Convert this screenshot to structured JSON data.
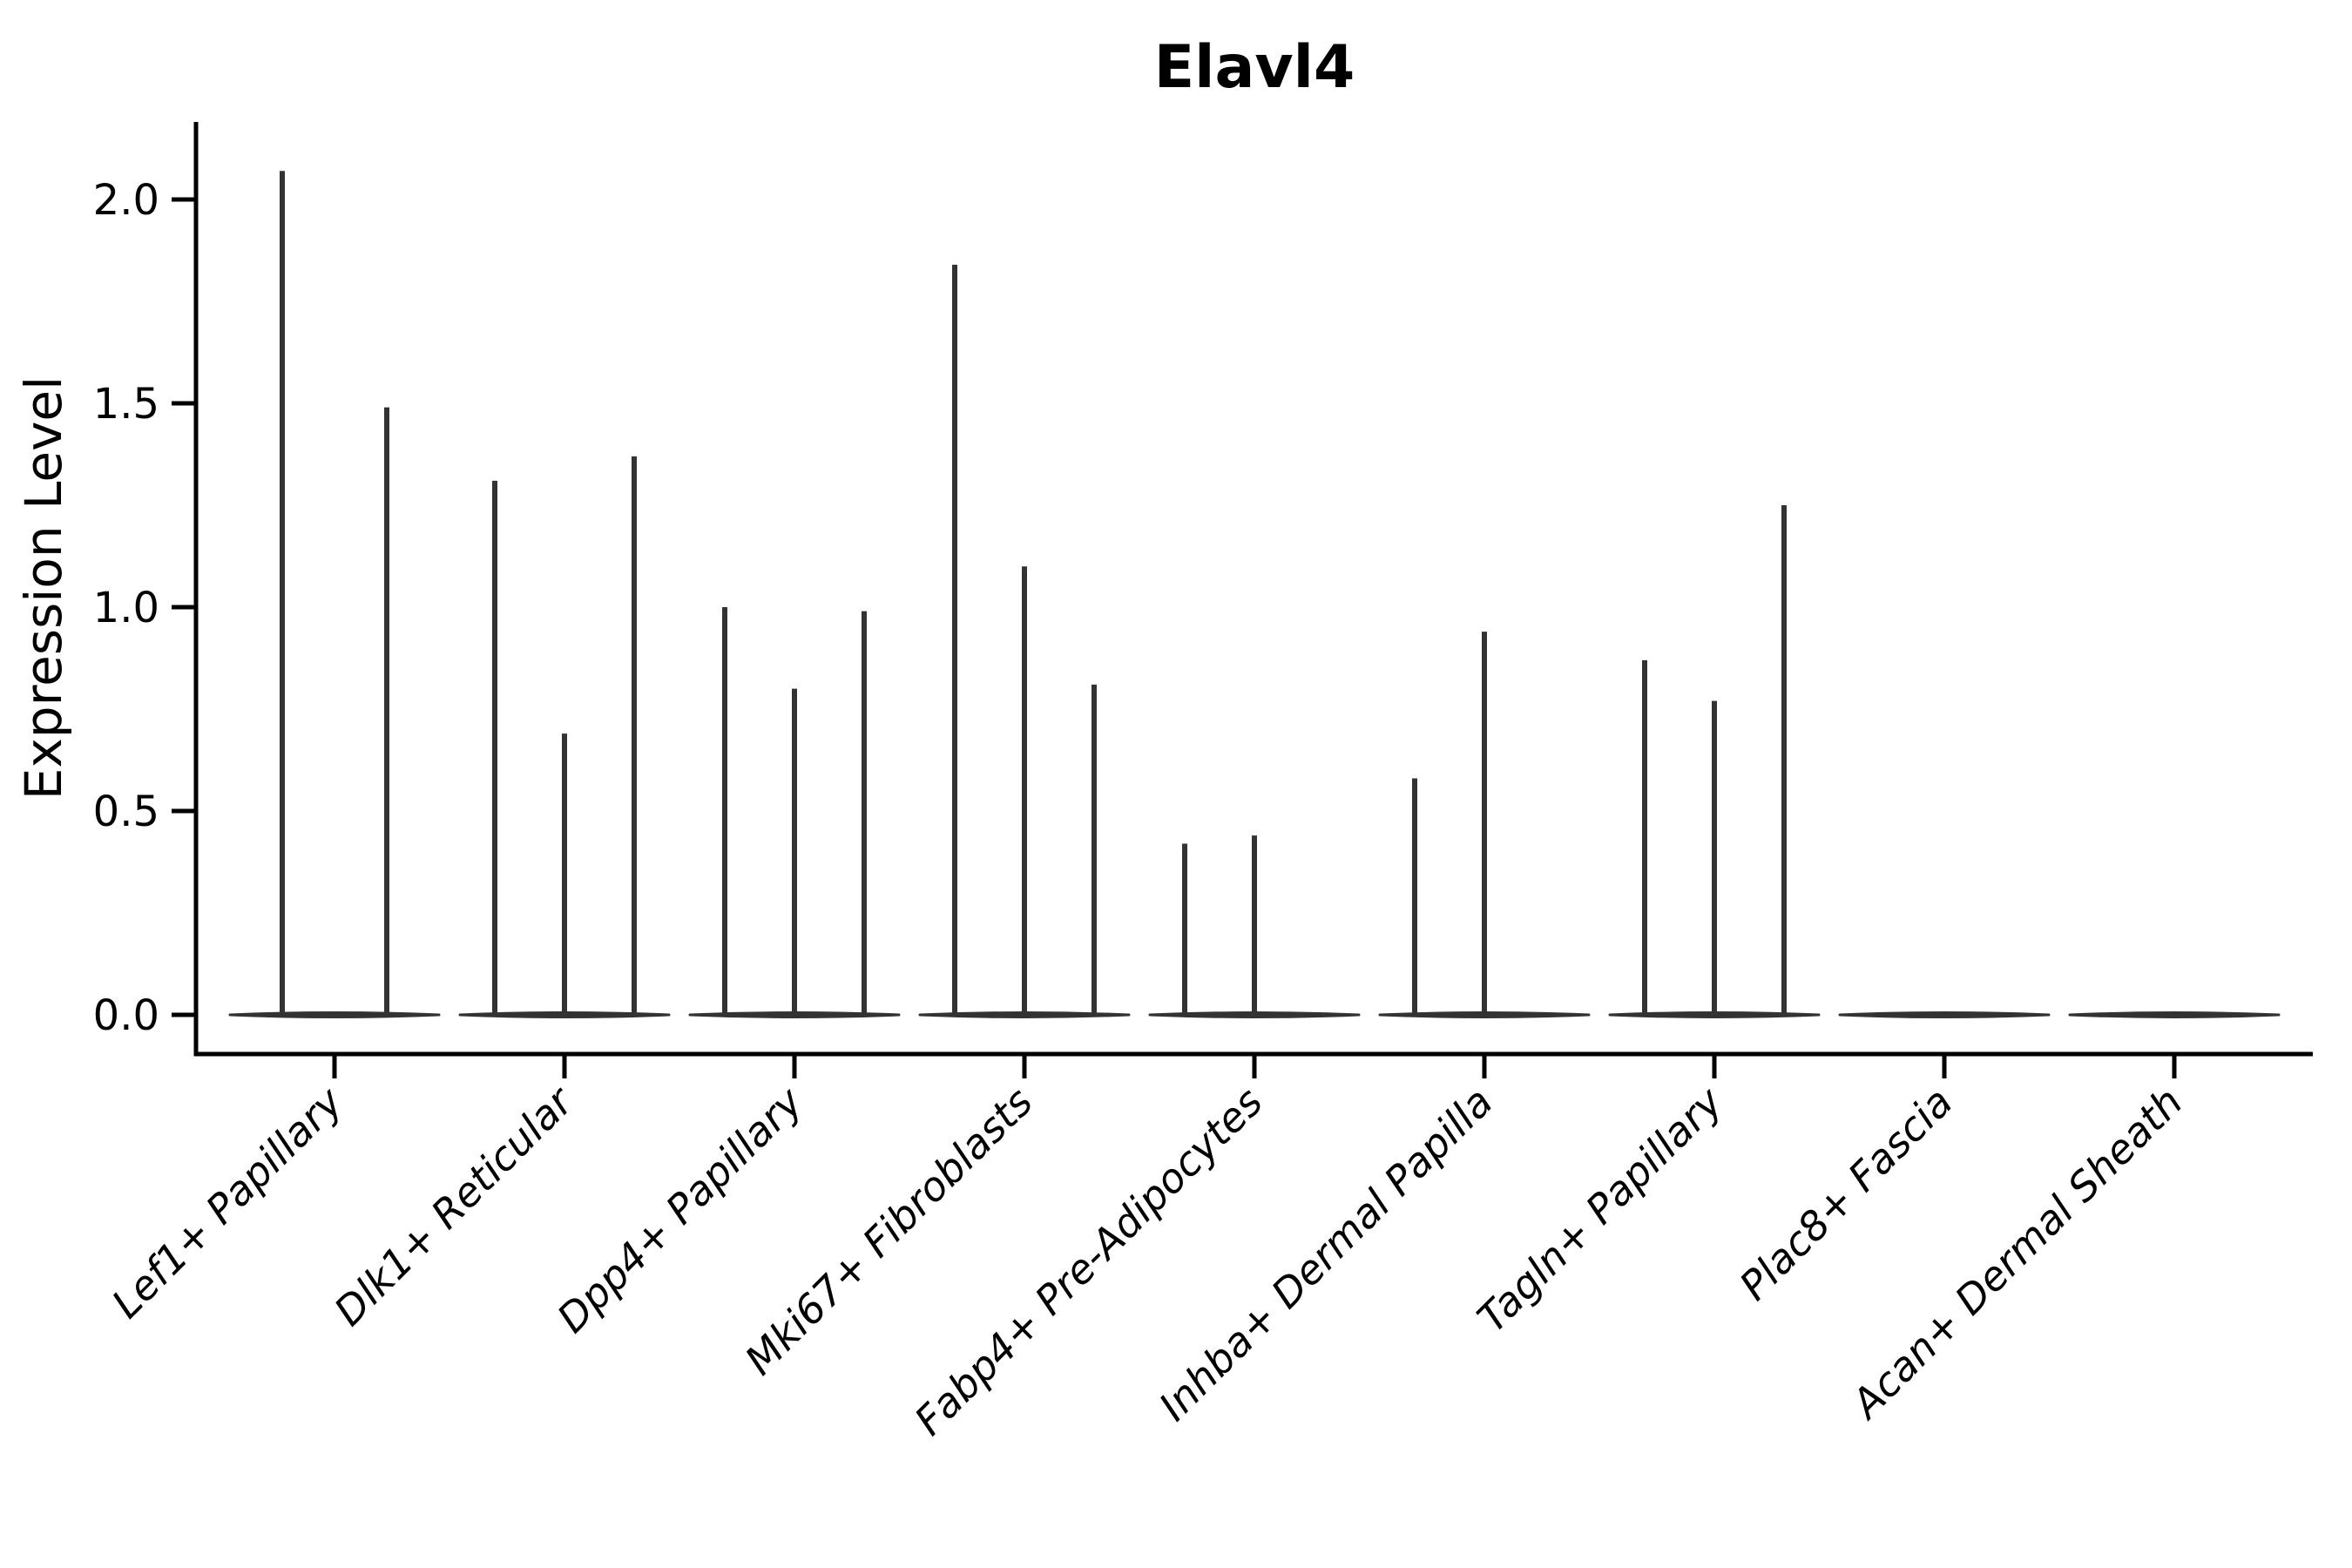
{
  "chart_data": {
    "type": "violin",
    "title": "Elavl4",
    "ylabel": "Expression Level",
    "xlabel": "",
    "ylim": [
      -0.1,
      2.19
    ],
    "yticks": [
      0.0,
      0.5,
      1.0,
      1.5,
      2.0
    ],
    "ytick_labels": [
      "0.0",
      "0.5",
      "1.0",
      "1.5",
      "2.0"
    ],
    "grid": false,
    "legend": "none",
    "colors": {
      "violin": "#333333",
      "spine": "#000000",
      "text": "#000000",
      "background": "#ffffff"
    },
    "groups": [
      {
        "label": "Lef1+ Papillary",
        "spikes": [
          {
            "dx": -60,
            "max": 2.07
          },
          {
            "dx": 60,
            "max": 1.49
          }
        ]
      },
      {
        "label": "Dlk1+ Reticular",
        "spikes": [
          {
            "dx": -80,
            "max": 1.31
          },
          {
            "dx": 0,
            "max": 0.69
          },
          {
            "dx": 80,
            "max": 1.37
          }
        ]
      },
      {
        "label": "Dpp4+ Papillary",
        "spikes": [
          {
            "dx": -80,
            "max": 1.0
          },
          {
            "dx": 0,
            "max": 0.8
          },
          {
            "dx": 80,
            "max": 0.99
          }
        ]
      },
      {
        "label": "Mki67+ Fibroblasts",
        "spikes": [
          {
            "dx": -80,
            "max": 1.84
          },
          {
            "dx": 0,
            "max": 1.1
          },
          {
            "dx": 80,
            "max": 0.81
          }
        ]
      },
      {
        "label": "Fabp4+ Pre-Adipocytes",
        "spikes": [
          {
            "dx": -80,
            "max": 0.42
          },
          {
            "dx": 0,
            "max": 0.44
          }
        ]
      },
      {
        "label": "Inhba+ Dermal Papilla",
        "spikes": [
          {
            "dx": -80,
            "max": 0.58
          },
          {
            "dx": 0,
            "max": 0.94
          }
        ]
      },
      {
        "label": "Tagln+ Papillary",
        "spikes": [
          {
            "dx": -80,
            "max": 0.87
          },
          {
            "dx": 0,
            "max": 0.77
          },
          {
            "dx": 80,
            "max": 1.25
          }
        ]
      },
      {
        "label": "Plac8+ Fascia",
        "spikes": []
      },
      {
        "label": "Acan+ Dermal Sheath",
        "spikes": []
      }
    ]
  }
}
